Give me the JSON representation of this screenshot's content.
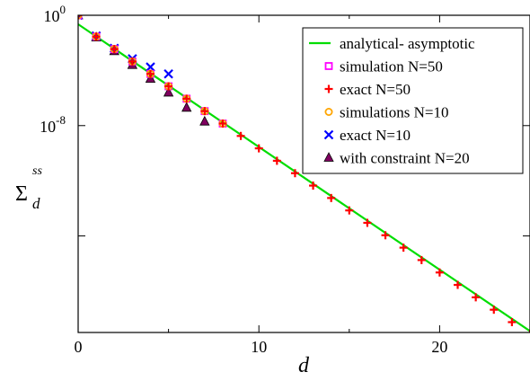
{
  "chart_data": {
    "type": "scatter",
    "title": "",
    "xlabel": "d",
    "ylabel_main": "Σ",
    "ylabel_sub": "d",
    "ylabel_sup": "ss",
    "xlim": [
      0,
      25
    ],
    "ylim_log10": [
      -23,
      0
    ],
    "yscale": "log",
    "grid": false,
    "legend_position": "top-right",
    "x_ticks": [
      {
        "value": 0,
        "label": "0"
      },
      {
        "value": 10,
        "label": "10"
      },
      {
        "value": 20,
        "label": "20"
      }
    ],
    "y_ticks": [
      {
        "exp": 0,
        "base": "10",
        "sup": "0"
      },
      {
        "exp": -8,
        "base": "10",
        "sup": "-8"
      }
    ],
    "y_minor_ticks_exp": [
      -16
    ],
    "series": [
      {
        "name": "analytical- asymptotic",
        "kind": "line",
        "color": "#00dd00",
        "x": [
          0,
          25
        ],
        "log10_y": [
          -0.65,
          -22.9
        ]
      },
      {
        "name": "simulation N=50",
        "kind": "marker",
        "marker": "square",
        "color": "#ff00ff",
        "x": [
          0,
          1,
          2,
          3,
          4,
          5,
          6,
          7,
          8
        ],
        "log10_y": [
          0,
          -1.55,
          -2.45,
          -3.35,
          -4.25,
          -5.15,
          -6.05,
          -6.95,
          -7.85
        ]
      },
      {
        "name": "exact N=50",
        "kind": "marker",
        "marker": "plus",
        "color": "#ff0000",
        "x": [
          0,
          1,
          2,
          3,
          4,
          5,
          6,
          7,
          8,
          9,
          10,
          11,
          12,
          13,
          14,
          15,
          16,
          17,
          18,
          19,
          20,
          21,
          22,
          23,
          24,
          25
        ],
        "log10_y": [
          0,
          -1.55,
          -2.45,
          -3.35,
          -4.25,
          -5.15,
          -6.05,
          -6.95,
          -7.85,
          -8.75,
          -9.65,
          -10.55,
          -11.45,
          -12.35,
          -13.25,
          -14.15,
          -15.05,
          -15.95,
          -16.85,
          -17.75,
          -18.65,
          -19.55,
          -20.45,
          -21.35,
          -22.25,
          -23.1
        ]
      },
      {
        "name": "simulations N=10",
        "kind": "marker",
        "marker": "circle",
        "color": "#ffa500",
        "x": [
          0,
          1,
          2,
          3,
          4,
          5,
          6,
          7,
          8
        ],
        "log10_y": [
          0,
          -1.55,
          -2.45,
          -3.35,
          -4.25,
          -5.15,
          -6.05,
          -6.95,
          -7.85
        ]
      },
      {
        "name": "exact N=10",
        "kind": "marker",
        "marker": "x",
        "color": "#0000ff",
        "x": [
          0,
          1,
          2,
          3,
          4,
          5
        ],
        "log10_y": [
          0,
          -1.5,
          -2.4,
          -3.15,
          -3.75,
          -4.25
        ]
      },
      {
        "name": "with constraint N=20",
        "kind": "marker",
        "marker": "triangle",
        "color": "#800060",
        "x": [
          0,
          1,
          2,
          3,
          4,
          5,
          6,
          7
        ],
        "log10_y": [
          0,
          -1.6,
          -2.6,
          -3.6,
          -4.6,
          -5.6,
          -6.7,
          -7.7
        ]
      }
    ]
  }
}
